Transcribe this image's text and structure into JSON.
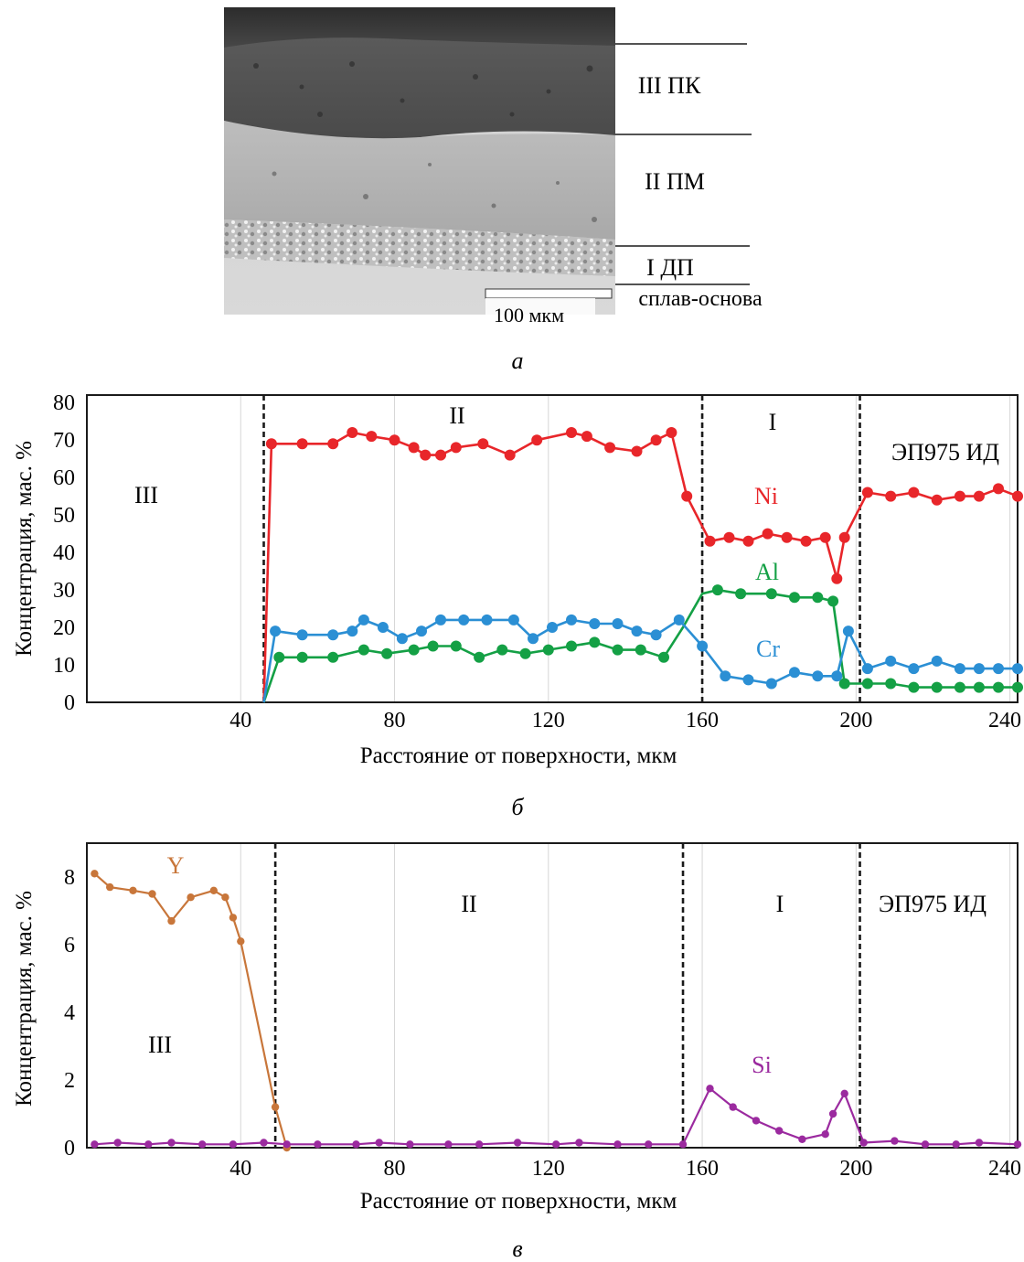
{
  "micrograph": {
    "layers": [
      "III ПК",
      "II ПМ",
      "I ДП",
      "сплав-основа"
    ],
    "scale_label": "100 мкм"
  },
  "panel_labels": [
    "а",
    "б",
    "в"
  ],
  "colors": {
    "Ni": "#e8262a",
    "Al": "#14a045",
    "Cr": "#2b8fd4",
    "Y": "#c8763a",
    "Si": "#9b2a9f"
  },
  "chart_data": [
    {
      "type": "line",
      "xlabel": "Расстояние от поверхности, мкм",
      "ylabel": "Концентрация, мас. %",
      "xlim": [
        0,
        242
      ],
      "ylim": [
        0,
        82
      ],
      "xticks": [
        "40",
        "80",
        "120",
        "160",
        "200",
        "240"
      ],
      "yticks": [
        "0",
        "10",
        "20",
        "30",
        "40",
        "50",
        "60",
        "70",
        "80"
      ],
      "grid": "vertical",
      "zone_boundaries": [
        46,
        160,
        201
      ],
      "zones": [
        "III",
        "II",
        "I",
        "ЭП975 ИД"
      ],
      "series": [
        {
          "name": "Ni",
          "markers_from": 1,
          "x": [
            46,
            48,
            56,
            64,
            69,
            74,
            80,
            85,
            88,
            92,
            96,
            103,
            110,
            117,
            126,
            130,
            136,
            143,
            148,
            152,
            156,
            162,
            167,
            172,
            177,
            182,
            187,
            192,
            195,
            197,
            203,
            209,
            215,
            221,
            227,
            232,
            237,
            242
          ],
          "y": [
            0,
            69,
            69,
            69,
            72,
            71,
            70,
            68,
            66,
            66,
            68,
            69,
            66,
            70,
            72,
            71,
            68,
            67,
            70,
            72,
            55,
            43,
            44,
            43,
            45,
            44,
            43,
            44,
            33,
            44,
            56,
            55,
            56,
            54,
            55,
            55,
            57,
            55
          ]
        },
        {
          "name": "Al",
          "markers_from": 1,
          "x": [
            46,
            50,
            56,
            64,
            72,
            78,
            85,
            90,
            96,
            102,
            108,
            114,
            120,
            126,
            132,
            138,
            144,
            150,
            155,
            160,
            164,
            170,
            178,
            184,
            190,
            194,
            197,
            203,
            209,
            215,
            221,
            227,
            232,
            237,
            242
          ],
          "y": [
            0,
            12,
            12,
            12,
            14,
            13,
            14,
            15,
            15,
            12,
            14,
            13,
            14,
            15,
            16,
            14,
            14,
            12,
            20,
            29,
            30,
            29,
            29,
            28,
            28,
            27,
            5,
            5,
            5,
            4,
            4,
            4,
            4,
            4,
            4
          ],
          "marker_x": [
            50,
            56,
            64,
            72,
            78,
            85,
            90,
            96,
            102,
            108,
            114,
            120,
            126,
            132,
            138,
            144,
            150,
            164,
            170,
            178,
            184,
            190,
            194,
            197,
            203,
            209,
            215,
            221,
            227,
            232,
            237,
            242
          ],
          "marker_y": [
            12,
            12,
            12,
            14,
            13,
            14,
            15,
            15,
            12,
            14,
            13,
            14,
            15,
            16,
            14,
            14,
            12,
            30,
            29,
            29,
            28,
            28,
            27,
            5,
            5,
            5,
            4,
            4,
            4,
            4,
            4,
            4
          ]
        },
        {
          "name": "Cr",
          "markers_from": 1,
          "x": [
            46,
            49,
            56,
            64,
            69,
            72,
            77,
            82,
            87,
            92,
            98,
            104,
            111,
            116,
            121,
            126,
            132,
            138,
            143,
            148,
            154,
            160,
            166,
            172,
            178,
            184,
            190,
            195,
            198,
            203,
            209,
            215,
            221,
            227,
            232,
            237,
            242
          ],
          "y": [
            0,
            19,
            18,
            18,
            19,
            22,
            20,
            17,
            19,
            22,
            22,
            22,
            22,
            17,
            20,
            22,
            21,
            21,
            19,
            18,
            22,
            15,
            7,
            6,
            5,
            8,
            7,
            7,
            19,
            9,
            11,
            9,
            11,
            9,
            9,
            9,
            9
          ]
        }
      ]
    },
    {
      "type": "line",
      "xlabel": "Расстояние от поверхности, мкм",
      "ylabel": "Концентрация, мас. %",
      "xlim": [
        0,
        242
      ],
      "ylim": [
        0,
        9
      ],
      "xticks": [
        "40",
        "80",
        "120",
        "160",
        "200",
        "240"
      ],
      "yticks": [
        "0",
        "2",
        "4",
        "6",
        "8"
      ],
      "grid": "vertical",
      "zone_boundaries": [
        49,
        155,
        201
      ],
      "zones": [
        "III",
        "II",
        "I",
        "ЭП975 ИД"
      ],
      "series": [
        {
          "name": "Y",
          "x": [
            2,
            6,
            12,
            17,
            22,
            27,
            33,
            36,
            38,
            40,
            49,
            52
          ],
          "y": [
            8.1,
            7.7,
            7.6,
            7.5,
            6.7,
            7.4,
            7.6,
            7.4,
            6.8,
            6.1,
            1.2,
            0
          ]
        },
        {
          "name": "Si",
          "x": [
            2,
            8,
            16,
            22,
            30,
            38,
            46,
            52,
            60,
            70,
            76,
            84,
            94,
            102,
            112,
            122,
            128,
            138,
            146,
            155,
            162,
            168,
            174,
            180,
            186,
            192,
            194,
            197,
            202,
            210,
            218,
            226,
            232,
            242
          ],
          "y": [
            0.1,
            0.15,
            0.1,
            0.15,
            0.1,
            0.1,
            0.15,
            0.1,
            0.1,
            0.1,
            0.15,
            0.1,
            0.1,
            0.1,
            0.15,
            0.1,
            0.15,
            0.1,
            0.1,
            0.1,
            1.75,
            1.2,
            0.8,
            0.5,
            0.25,
            0.4,
            1.0,
            1.6,
            0.15,
            0.2,
            0.1,
            0.1,
            0.15,
            0.1
          ]
        }
      ]
    }
  ]
}
